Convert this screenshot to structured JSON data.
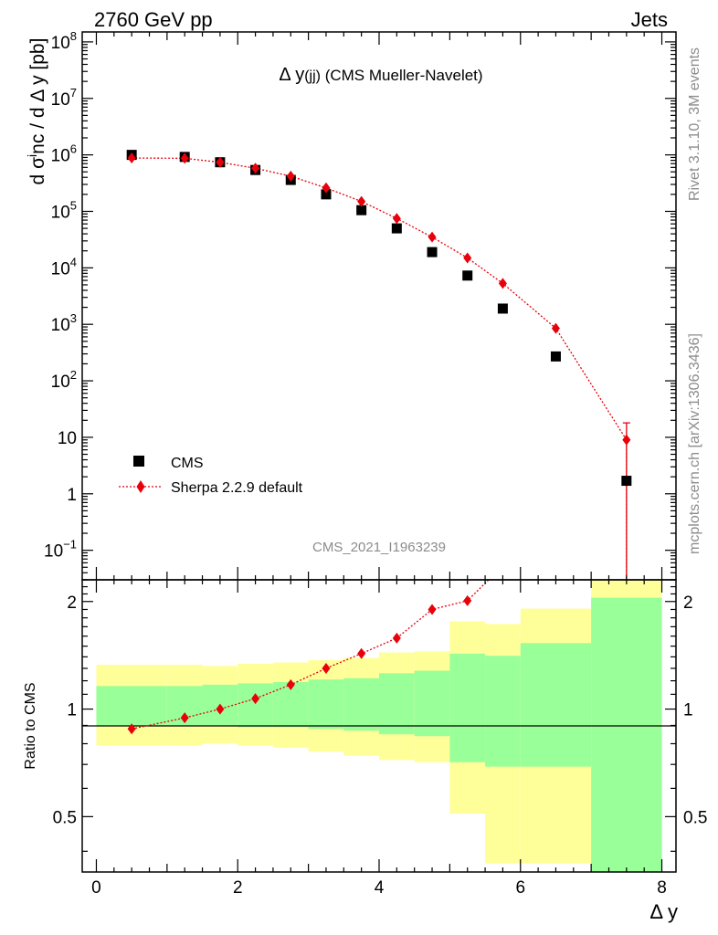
{
  "header": {
    "energy_label": "2760 GeV pp",
    "process_label": "Jets"
  },
  "side_labels": {
    "rivet": "Rivet 3.1.10,  3M events",
    "mcplots": "mcplots.cern.ch [arXiv:1306.3436]"
  },
  "colors": {
    "cms": "#000000",
    "sherpa": "#e8000b",
    "band_inner": "#99ff99",
    "band_outer": "#ffff99"
  },
  "chart_data": [
    {
      "type": "scatter",
      "title": "Δ y(jj) (CMS Mueller-Navelet)",
      "xlabel": "Δ y",
      "ylabel": "d σ^inc / d Δ y [pb]",
      "yscale": "log",
      "xlim": [
        -0.2,
        8.2
      ],
      "ylim": [
        0.03,
        150000000
      ],
      "y_ticks": [
        {
          "v": 100000000,
          "base": "10",
          "exp": "8"
        },
        {
          "v": 10000000,
          "base": "10",
          "exp": "7"
        },
        {
          "v": 1000000,
          "base": "10",
          "exp": "6"
        },
        {
          "v": 100000,
          "base": "10",
          "exp": "5"
        },
        {
          "v": 10000,
          "base": "10",
          "exp": "4"
        },
        {
          "v": 1000,
          "base": "10",
          "exp": "3"
        },
        {
          "v": 100,
          "base": "10",
          "exp": "2"
        },
        {
          "v": 10,
          "base": "10",
          "exp": ""
        },
        {
          "v": 1,
          "base": "1",
          "exp": ""
        },
        {
          "v": 0.1,
          "base": "10",
          "exp": "−1"
        }
      ],
      "watermark": "CMS_2021_I1963239",
      "series": [
        {
          "name": "CMS",
          "x": [
            0.5,
            1.25,
            1.75,
            2.25,
            2.75,
            3.25,
            3.75,
            4.25,
            4.75,
            5.25,
            5.75,
            6.5,
            7.5
          ],
          "y": [
            1000000,
            920000,
            740000,
            540000,
            360000,
            200000,
            105000,
            50000,
            19000,
            7300,
            1900,
            270,
            1.7
          ]
        },
        {
          "name": "Sherpa 2.2.9 default",
          "x": [
            0.5,
            1.25,
            1.75,
            2.25,
            2.75,
            3.25,
            3.75,
            4.25,
            4.75,
            5.25,
            5.75,
            6.5,
            7.5
          ],
          "y": [
            880000,
            870000,
            740000,
            580000,
            420000,
            260000,
            150000,
            75000,
            35000,
            15000,
            5300,
            850,
            9
          ]
        }
      ]
    },
    {
      "type": "line",
      "ylabel": "Ratio to CMS",
      "yscale": "log",
      "xlim": [
        -0.2,
        8.2
      ],
      "ylim": [
        0.35,
        2.3
      ],
      "x_ticks": [
        "0",
        "2",
        "4",
        "6",
        "8"
      ],
      "y_ticks": [
        {
          "v": 2,
          "label": "2"
        },
        {
          "v": 1,
          "label": "1"
        },
        {
          "v": 0.5,
          "label": "0.5"
        }
      ],
      "bins": [
        0,
        1,
        1.5,
        2,
        2.5,
        3,
        3.5,
        4,
        4.5,
        5,
        5.5,
        6,
        7,
        8
      ],
      "band_inner_up": [
        1.16,
        1.16,
        1.17,
        1.18,
        1.19,
        1.21,
        1.22,
        1.26,
        1.28,
        1.43,
        1.41,
        1.53,
        2.05
      ],
      "band_inner_down": [
        0.9,
        0.9,
        0.9,
        0.89,
        0.89,
        0.88,
        0.87,
        0.85,
        0.84,
        0.71,
        0.69,
        0.69,
        0.35
      ],
      "band_outer_up": [
        1.33,
        1.33,
        1.32,
        1.34,
        1.35,
        1.37,
        1.39,
        1.44,
        1.45,
        1.76,
        1.73,
        1.91,
        2.3
      ],
      "band_outer_down": [
        0.79,
        0.79,
        0.8,
        0.79,
        0.78,
        0.76,
        0.74,
        0.72,
        0.71,
        0.51,
        0.37,
        0.37,
        0.35
      ],
      "series": [
        {
          "name": "Sherpa 2.2.9 default / CMS",
          "x": [
            0.5,
            1.25,
            1.75,
            2.25,
            2.75,
            3.25,
            3.75,
            4.25,
            4.75,
            5.25,
            5.55
          ],
          "y": [
            0.88,
            0.945,
            1.0,
            1.07,
            1.17,
            1.3,
            1.43,
            1.58,
            1.9,
            2.01,
            2.3
          ]
        }
      ]
    }
  ]
}
